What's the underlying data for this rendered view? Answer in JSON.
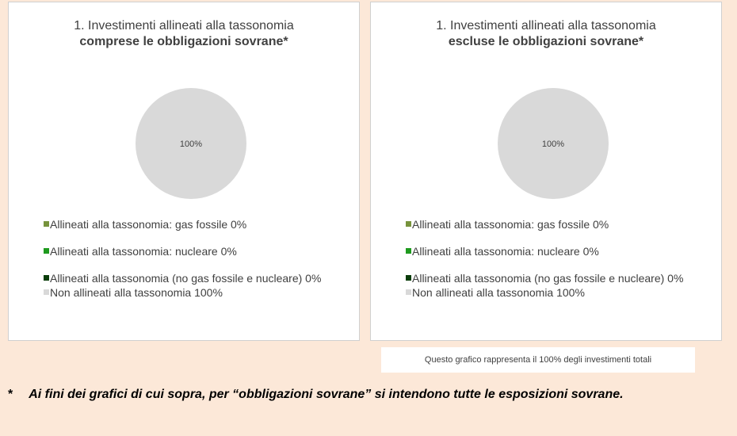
{
  "chart_data": [
    {
      "type": "pie",
      "title": "1. Investimenti allineati alla tassonomia",
      "subtitle": "comprese le obbligazioni sovrane*",
      "categories": [
        "Allineati alla tassonomia: gas fossile",
        "Allineati alla tassonomia: nucleare",
        "Allineati alla tassonomia (no gas fossile e nucleare)",
        "Non allineati alla tassonomia"
      ],
      "values": [
        0,
        0,
        0,
        100
      ],
      "value_labels": [
        "0%",
        "0%",
        "0%",
        "100%"
      ],
      "colors": [
        "#77933c",
        "#1e9a1e",
        "#0b3d0b",
        "#d9d9d9"
      ]
    },
    {
      "type": "pie",
      "title": "1. Investimenti allineati alla tassonomia",
      "subtitle": "escluse le obbligazioni sovrane*",
      "categories": [
        "Allineati alla tassonomia: gas fossile",
        "Allineati alla tassonomia: nucleare",
        "Allineati alla tassonomia (no gas fossile e nucleare)",
        "Non allineati alla tassonomia"
      ],
      "values": [
        0,
        0,
        0,
        100
      ],
      "value_labels": [
        "0%",
        "0%",
        "0%",
        "100%"
      ],
      "colors": [
        "#77933c",
        "#1e9a1e",
        "#0b3d0b",
        "#d9d9d9"
      ]
    }
  ],
  "note": "Questo grafico rappresenta il 100% degli investimenti totali",
  "footnote": {
    "marker": "*",
    "text": "Ai fini dei grafici di cui sopra, per “obbligazioni sovrane” si intendono tutte le esposizioni sovrane."
  }
}
